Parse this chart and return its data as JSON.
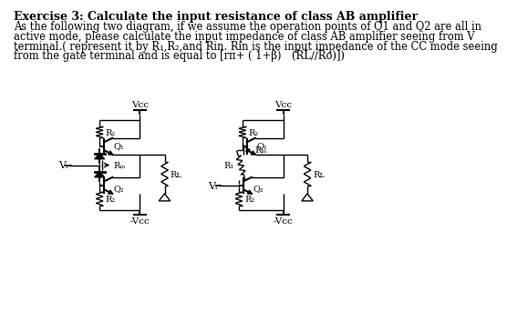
{
  "title": "Exercise 3: Calculate the input resistance of class AB amplifier",
  "body_lines": [
    "As the following two diagram, if we assume the operation points of Q1 and Q2 are all in",
    "active mode, please calculate the input impedance of class AB amplifier seeing from V",
    "terminal.( represent it by R₁,R₂,and Rin. Rin is the input impedance of the CC mode seeing",
    "from the gate terminal and is equal to [rπ+ ( 1+β) (RL∕∕Ro)])"
  ],
  "bg_color": "#ffffff"
}
